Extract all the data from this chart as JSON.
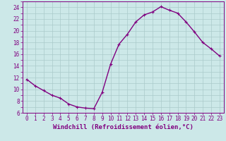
{
  "x": [
    0,
    1,
    2,
    3,
    4,
    5,
    6,
    7,
    8,
    9,
    10,
    11,
    12,
    13,
    14,
    15,
    16,
    17,
    18,
    19,
    20,
    21,
    22,
    23
  ],
  "y": [
    11.7,
    10.6,
    9.8,
    9.0,
    8.5,
    7.5,
    7.0,
    6.8,
    6.7,
    9.5,
    14.3,
    17.7,
    19.4,
    21.5,
    22.7,
    23.2,
    24.1,
    23.5,
    23.0,
    21.5,
    19.8,
    18.0,
    16.9,
    15.7
  ],
  "line_color": "#800080",
  "bg_color": "#cce8e8",
  "grid_color": "#aacaca",
  "xlabel": "Windchill (Refroidissement éolien,°C)",
  "xlabel_color": "#800080",
  "tick_color": "#800080",
  "ylim": [
    6,
    25
  ],
  "xlim": [
    -0.5,
    23.5
  ],
  "yticks": [
    6,
    8,
    10,
    12,
    14,
    16,
    18,
    20,
    22,
    24
  ],
  "xticks": [
    0,
    1,
    2,
    3,
    4,
    5,
    6,
    7,
    8,
    9,
    10,
    11,
    12,
    13,
    14,
    15,
    16,
    17,
    18,
    19,
    20,
    21,
    22,
    23
  ],
  "marker": "P",
  "linewidth": 1.0,
  "markersize": 2.5,
  "tick_fontsize": 5.5,
  "xlabel_fontsize": 6.5
}
